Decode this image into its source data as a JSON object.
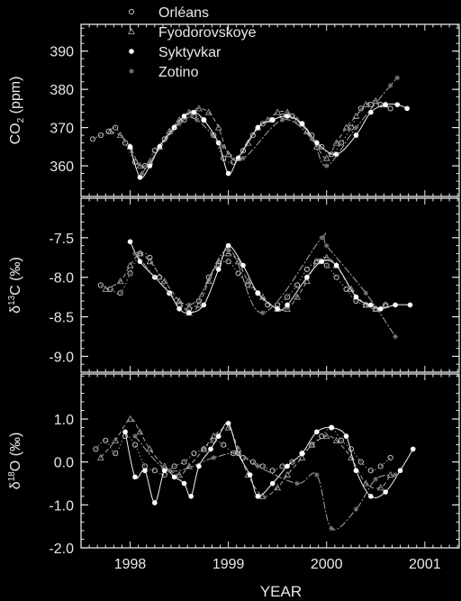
{
  "colors": {
    "background": "#000000",
    "foreground": "#e6e6e6",
    "orleans": "#bdbdbd",
    "fyodorovskoye": "#9e9e9e",
    "syktyvkar": "#ffffff",
    "zotino": "#7a7a7a"
  },
  "chart_data": [
    {
      "type": "scatter",
      "title": "",
      "ylabel_main": "CO",
      "ylabel_sub": "2",
      "ylabel_rest": " (ppm)",
      "xlabel": "",
      "ylim": [
        352,
        397
      ],
      "xlim": [
        1997.5,
        2001.35
      ],
      "yticks": [
        360,
        370,
        380,
        390
      ],
      "ytick_labels": [
        "360",
        "370",
        "380",
        "390"
      ],
      "legend": {
        "placement": "top-left",
        "entries": [
          {
            "label": "Orléans",
            "marker": "open-circle"
          },
          {
            "label": "Fyodorovskoye",
            "marker": "open-triangle"
          },
          {
            "label": "Syktyvkar",
            "marker": "filled-circle"
          },
          {
            "label": "Zotino",
            "marker": "asterisk"
          }
        ]
      },
      "series": [
        {
          "name": "Orléans",
          "marker": "open-circle",
          "x": [
            1997.62,
            1997.7,
            1997.78,
            1997.85,
            1997.95,
            1998.05,
            1998.15,
            1998.25,
            1998.35,
            1998.45,
            1998.55,
            1998.65,
            1998.75,
            1998.85,
            1998.95,
            1999.05,
            1999.15,
            1999.25,
            1999.35,
            1999.45,
            1999.55,
            1999.65,
            1999.75,
            1999.85,
            1999.95,
            2000.05,
            2000.15,
            2000.25,
            2000.35,
            2000.45,
            2000.55,
            2000.65
          ],
          "y": [
            367,
            368,
            369,
            370,
            366,
            361,
            360,
            364,
            367,
            370,
            372,
            373,
            372,
            368,
            362,
            361,
            364,
            368,
            371,
            372,
            373,
            373,
            371,
            368,
            365,
            363,
            366,
            370,
            375,
            376,
            376,
            375
          ]
        },
        {
          "name": "Fyodorovskoye",
          "marker": "open-triangle",
          "x": [
            1997.8,
            1997.9,
            1998.0,
            1998.1,
            1998.2,
            1998.3,
            1998.4,
            1998.5,
            1998.6,
            1998.7,
            1998.8,
            1998.9,
            1999.0,
            1999.1,
            1999.2,
            1999.3,
            1999.4,
            1999.5,
            1999.6,
            1999.7,
            1999.8,
            1999.9,
            2000.0,
            2000.1,
            2000.2,
            2000.3,
            2000.4,
            2000.5,
            2000.6
          ],
          "y": [
            369,
            368,
            365,
            360,
            361,
            365,
            369,
            372,
            374,
            375,
            374,
            370,
            363,
            362,
            366,
            370,
            372,
            374,
            374,
            372,
            369,
            365,
            362,
            366,
            370,
            373,
            376,
            377,
            376
          ]
        },
        {
          "name": "Syktyvkar",
          "marker": "filled-circle",
          "x": [
            1998.0,
            1998.1,
            1998.2,
            1998.3,
            1998.45,
            1998.55,
            1998.65,
            1998.75,
            1998.9,
            1999.0,
            1999.1,
            1999.3,
            1999.45,
            1999.6,
            1999.75,
            1999.9,
            2000.1,
            2000.3,
            2000.45,
            2000.6,
            2000.72,
            2000.82
          ],
          "y": [
            365,
            357,
            360,
            365,
            370,
            373,
            374,
            372,
            366,
            358,
            362,
            370,
            372,
            373,
            371,
            366,
            363,
            368,
            374,
            376,
            376,
            375
          ]
        },
        {
          "name": "Zotino",
          "marker": "asterisk",
          "x": [
            1998.12,
            1998.5,
            1998.68,
            1998.95,
            1999.15,
            1999.55,
            1999.85,
            2000.0,
            2000.3,
            2000.65,
            2000.72
          ],
          "y": [
            358,
            371,
            372,
            365,
            362,
            372,
            367,
            360,
            370,
            381,
            383
          ]
        }
      ]
    },
    {
      "type": "scatter",
      "title": "",
      "ylabel_main": "δ",
      "ylabel_sup": "13",
      "ylabel_rest": "C (‰)",
      "ylim": [
        -9.2,
        -7.0
      ],
      "xlim": [
        1997.5,
        2001.35
      ],
      "yticks": [
        -9.0,
        -8.5,
        -8.0,
        -7.5
      ],
      "ytick_labels": [
        "-9.0",
        "-8.5",
        "-8.0",
        "-7.5"
      ],
      "series": [
        {
          "name": "Orléans",
          "marker": "open-circle",
          "x": [
            1997.7,
            1997.8,
            1997.9,
            1998.0,
            1998.1,
            1998.2,
            1998.3,
            1998.4,
            1998.5,
            1998.6,
            1998.7,
            1998.8,
            1998.9,
            1999.0,
            1999.1,
            1999.2,
            1999.3,
            1999.4,
            1999.5,
            1999.6,
            1999.7,
            1999.8,
            1999.9,
            2000.0,
            2000.1,
            2000.2,
            2000.3,
            2000.4,
            2000.5,
            2000.6
          ],
          "y": [
            -8.1,
            -8.15,
            -8.2,
            -7.95,
            -7.7,
            -7.75,
            -8.0,
            -8.2,
            -8.35,
            -8.4,
            -8.3,
            -8.0,
            -7.85,
            -7.8,
            -7.95,
            -8.1,
            -8.2,
            -8.35,
            -8.35,
            -8.25,
            -8.1,
            -7.9,
            -7.8,
            -7.85,
            -8.0,
            -8.15,
            -8.3,
            -8.35,
            -8.4,
            -8.35
          ]
        },
        {
          "name": "Fyodorovskoye",
          "marker": "open-triangle",
          "x": [
            1997.75,
            1997.9,
            1998.0,
            1998.1,
            1998.2,
            1998.35,
            1998.5,
            1998.6,
            1998.7,
            1998.8,
            1998.9,
            1999.0,
            1999.1,
            1999.2,
            1999.35,
            1999.5,
            1999.6,
            1999.7,
            1999.8,
            1999.9,
            2000.0,
            2000.1,
            2000.25,
            2000.4,
            2000.5,
            2000.6
          ],
          "y": [
            -8.15,
            -8.05,
            -7.85,
            -7.7,
            -7.8,
            -8.05,
            -8.3,
            -8.45,
            -8.35,
            -8.05,
            -7.8,
            -7.7,
            -7.8,
            -8.05,
            -8.25,
            -8.4,
            -8.4,
            -8.25,
            -8.05,
            -7.8,
            -7.75,
            -7.85,
            -8.15,
            -8.35,
            -8.4,
            -8.35
          ]
        },
        {
          "name": "Syktyvkar",
          "marker": "filled-circle",
          "x": [
            1998.0,
            1998.1,
            1998.25,
            1998.4,
            1998.5,
            1998.6,
            1998.75,
            1998.9,
            1999.0,
            1999.15,
            1999.3,
            1999.5,
            1999.6,
            1999.8,
            1999.95,
            2000.1,
            2000.3,
            2000.45,
            2000.55,
            2000.7,
            2000.85
          ],
          "y": [
            -7.55,
            -7.8,
            -8.0,
            -8.2,
            -8.4,
            -8.45,
            -8.35,
            -7.9,
            -7.6,
            -7.85,
            -8.2,
            -8.4,
            -8.35,
            -8.0,
            -7.8,
            -7.85,
            -8.25,
            -8.35,
            -8.4,
            -8.35,
            -8.35
          ]
        },
        {
          "name": "Zotino",
          "marker": "asterisk",
          "x": [
            1998.05,
            1998.6,
            1999.0,
            1999.35,
            1999.95,
            2000.0,
            2000.4,
            2000.7
          ],
          "y": [
            -7.7,
            -8.35,
            -7.65,
            -8.45,
            -7.5,
            -7.6,
            -8.2,
            -8.75
          ]
        }
      ]
    },
    {
      "type": "scatter",
      "title": "",
      "ylabel_main": "δ",
      "ylabel_sup": "18",
      "ylabel_rest": "O (‰)",
      "xlabel": "YEAR",
      "ylim": [
        -2.0,
        2.05
      ],
      "xlim": [
        1997.5,
        2001.35
      ],
      "yticks": [
        -2.0,
        -1.0,
        0.0,
        1.0
      ],
      "ytick_labels": [
        "-2.0",
        "-1.0",
        "0.0",
        "1.0"
      ],
      "xticks": [
        1998,
        1999,
        2000,
        2001
      ],
      "xtick_labels": [
        "1998",
        "1999",
        "2000",
        "2001"
      ],
      "series": [
        {
          "name": "Orléans",
          "marker": "open-circle",
          "x": [
            1997.65,
            1997.75,
            1997.85,
            1997.95,
            1998.05,
            1998.15,
            1998.25,
            1998.35,
            1998.45,
            1998.55,
            1998.65,
            1998.75,
            1998.85,
            1998.95,
            1999.05,
            1999.15,
            1999.25,
            1999.35,
            1999.45,
            1999.55,
            1999.65,
            1999.75,
            1999.85,
            1999.95,
            2000.05,
            2000.15,
            2000.25,
            2000.35,
            2000.45,
            2000.55,
            2000.65
          ],
          "y": [
            0.3,
            0.5,
            0.2,
            0.6,
            0.4,
            -0.1,
            -0.2,
            -0.3,
            -0.1,
            0.0,
            0.2,
            0.3,
            0.5,
            0.4,
            0.2,
            0.1,
            0.0,
            -0.1,
            -0.2,
            -0.1,
            0.0,
            0.2,
            0.4,
            0.6,
            0.8,
            0.5,
            0.3,
            0.0,
            -0.2,
            -0.1,
            0.1
          ]
        },
        {
          "name": "Fyodorovskoye",
          "marker": "open-triangle",
          "x": [
            1997.7,
            1997.85,
            1998.0,
            1998.1,
            1998.2,
            1998.35,
            1998.5,
            1998.6,
            1998.75,
            1998.85,
            1999.0,
            1999.1,
            1999.2,
            1999.35,
            1999.5,
            1999.6,
            1999.75,
            1999.85,
            2000.0,
            2000.1,
            2000.25,
            2000.4,
            2000.55,
            2000.65
          ],
          "y": [
            0.1,
            0.5,
            1.0,
            0.7,
            0.3,
            -0.1,
            -0.3,
            -0.1,
            0.3,
            0.6,
            0.8,
            0.3,
            -0.3,
            -0.8,
            -0.6,
            -0.3,
            0.1,
            0.4,
            0.6,
            0.5,
            0.1,
            -0.5,
            -0.6,
            -0.3
          ]
        },
        {
          "name": "Syktyvkar",
          "marker": "filled-circle",
          "x": [
            1997.95,
            1998.05,
            1998.15,
            1998.25,
            1998.35,
            1998.45,
            1998.55,
            1998.62,
            1998.7,
            1998.82,
            1998.9,
            1999.0,
            1999.1,
            1999.22,
            1999.3,
            1999.45,
            1999.6,
            1999.75,
            1999.9,
            2000.05,
            2000.2,
            2000.3,
            2000.45,
            2000.6,
            2000.75,
            2000.88
          ],
          "y": [
            0.7,
            -0.35,
            -0.2,
            -0.95,
            -0.2,
            -0.35,
            -0.5,
            -0.8,
            -0.1,
            0.3,
            0.6,
            0.9,
            0.2,
            -0.3,
            -0.8,
            -0.5,
            -0.1,
            0.2,
            0.7,
            0.8,
            0.6,
            -0.2,
            -0.8,
            -0.7,
            -0.2,
            0.3
          ]
        },
        {
          "name": "Zotino",
          "marker": "asterisk",
          "x": [
            1998.05,
            1998.4,
            1998.85,
            1999.1,
            1999.3,
            1999.7,
            1999.9,
            2000.05,
            2000.3,
            2000.5,
            2000.7
          ],
          "y": [
            0.6,
            -0.2,
            0.1,
            0.2,
            -0.1,
            -0.5,
            -0.3,
            -1.55,
            -1.1,
            -0.4,
            -0.3
          ]
        }
      ]
    }
  ]
}
